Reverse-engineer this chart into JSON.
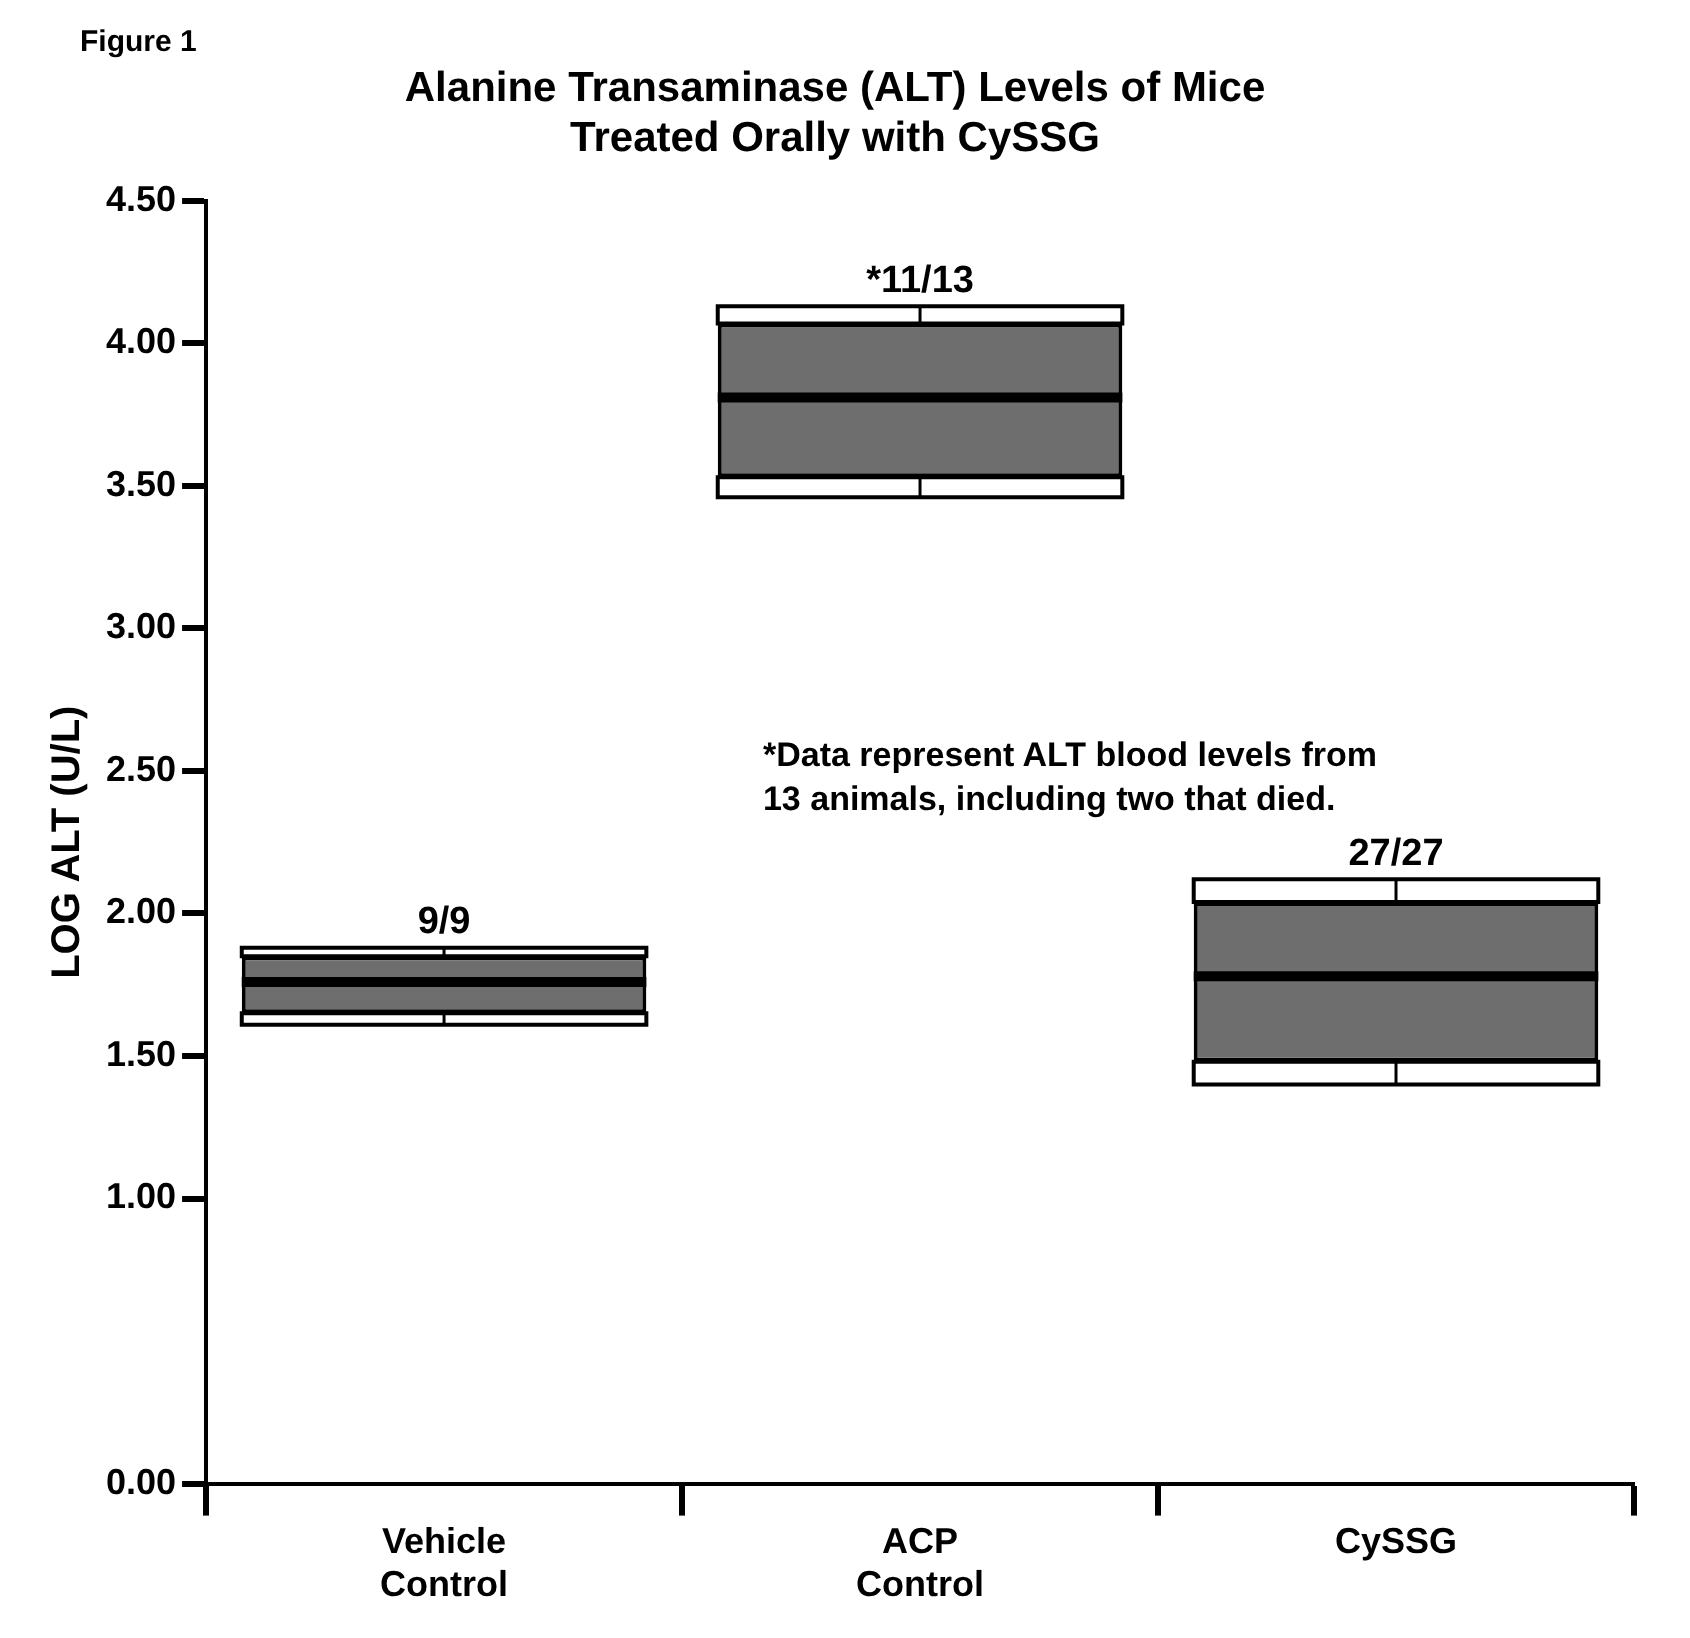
{
  "chart_data": {
    "type": "box",
    "title": "Alanine Transaminase (ALT) Levels of Mice Treated Orally with CySSG",
    "ylabel": "LOG ALT (U/L)",
    "categories": [
      "Vehicle Control",
      "ACP Control",
      "CySSG"
    ],
    "color": "#000000",
    "boxes": [
      {
        "low": 1.61,
        "q1": 1.65,
        "median": 1.76,
        "q3": 1.85,
        "high": 1.88
      },
      {
        "low": 3.46,
        "q1": 3.53,
        "median": 3.81,
        "q3": 4.07,
        "high": 4.13
      },
      {
        "low": 1.4,
        "q1": 1.48,
        "median": 1.78,
        "q3": 2.04,
        "high": 2.12
      }
    ],
    "ylim": [
      0,
      4.5
    ],
    "yticks": [
      {
        "value": 0,
        "label": "0.00"
      },
      {
        "value": 1,
        "label": "1.00"
      },
      {
        "value": 1.5,
        "label": "1.50"
      },
      {
        "value": 2,
        "label": "2.00"
      },
      {
        "value": 2.5,
        "label": "2.50"
      },
      {
        "value": 3,
        "label": "3.00"
      },
      {
        "value": 3.5,
        "label": "3.50"
      },
      {
        "value": 4,
        "label": "4.00"
      },
      {
        "value": 4.5,
        "label": "4.50"
      }
    ],
    "annotations": [
      "Figure 1",
      "*Data represent ALT blood levels from 13 animals, including two that died.",
      {
        "text": "9/9",
        "x": "Vehicle Control",
        "y": 1.88
      },
      {
        "text": "*11/13",
        "x": "ACP Control",
        "y": 4.13
      },
      {
        "text": "27/27",
        "x": "CySSG",
        "y": 2.12
      }
    ]
  }
}
